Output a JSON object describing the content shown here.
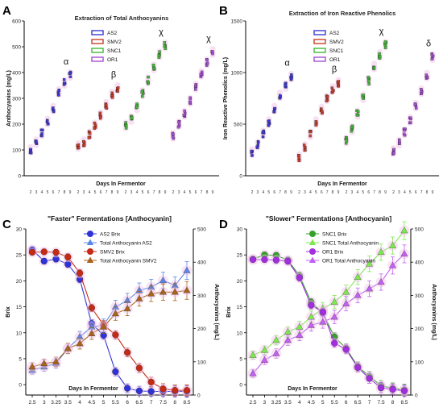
{
  "chart_data": [
    {
      "panel_label": "A",
      "type": "scatter",
      "title": "Extraction of Total Anthocyanins",
      "xlabel": "Days In Fermentor",
      "ylabel": "Anthocyanins (mg/L)",
      "ylim": [
        0,
        600
      ],
      "yticks": [
        0,
        100,
        200,
        300,
        400,
        500,
        600
      ],
      "grid": false,
      "legend": "top-center",
      "series": [
        {
          "name": "AS2",
          "color": "#3b3bd6",
          "days": [
            "2",
            "3",
            "4",
            "5",
            "6",
            "7",
            "8",
            "9"
          ],
          "values": [
            100,
            130,
            165,
            210,
            260,
            325,
            360,
            390
          ],
          "letter": "α"
        },
        {
          "name": "SMV2",
          "color": "#c8402a",
          "days": [
            "2",
            "3",
            "4",
            "5",
            "6",
            "7",
            "8",
            "9"
          ],
          "values": [
            115,
            130,
            160,
            195,
            235,
            275,
            315,
            340
          ],
          "letter": "β"
        },
        {
          "name": "SNC1",
          "color": "#44b83a",
          "days": [
            "2",
            "3",
            "4",
            "5",
            "6",
            "7",
            "8",
            "9"
          ],
          "values": [
            195,
            220,
            265,
            320,
            370,
            420,
            470,
            505
          ],
          "letter": "χ"
        },
        {
          "name": "OR1",
          "color": "#a64fd6",
          "days": [
            "2",
            "3",
            "4",
            "5",
            "6",
            "7",
            "8",
            "9"
          ],
          "values": [
            155,
            200,
            240,
            290,
            345,
            395,
            440,
            480
          ],
          "letter": "χ"
        }
      ]
    },
    {
      "panel_label": "B",
      "type": "scatter",
      "title": "Extraction of Iron Reactive Phenolics",
      "xlabel": "Days In Fermentor",
      "ylabel": "Iron Reactive Phenolics (mg/L)",
      "ylim": [
        0,
        1500
      ],
      "yticks": [
        0,
        500,
        1000,
        1500
      ],
      "grid": false,
      "legend": "top-center",
      "series": [
        {
          "name": "AS2",
          "color": "#3b3bd6",
          "days": [
            "2",
            "3",
            "4",
            "5",
            "6",
            "7",
            "8",
            "9"
          ],
          "values": [
            230,
            300,
            410,
            520,
            650,
            780,
            870,
            960
          ],
          "letter": "α"
        },
        {
          "name": "SMV2",
          "color": "#c8402a",
          "days": [
            "2",
            "3",
            "4",
            "5",
            "6",
            "7",
            "8",
            "9"
          ],
          "values": [
            180,
            280,
            400,
            520,
            640,
            750,
            840,
            900
          ],
          "letter": "β"
        },
        {
          "name": "SNC1",
          "color": "#44b83a",
          "days": [
            "2",
            "3",
            "4",
            "5",
            "6",
            "7",
            "8",
            "9"
          ],
          "values": [
            340,
            450,
            600,
            760,
            920,
            1060,
            1170,
            1270
          ],
          "letter": "χ"
        },
        {
          "name": "OR1",
          "color": "#a64fd6",
          "days": [
            "2",
            "3",
            "4",
            "5",
            "6",
            "7",
            "8",
            "9"
          ],
          "values": [
            240,
            320,
            420,
            540,
            680,
            820,
            970,
            1150
          ],
          "letter": "δ"
        }
      ]
    },
    {
      "panel_label": "C",
      "type": "line",
      "title": "\"Faster\" Fermentations [Anthocyanin]",
      "xlabel": "Days In Fermentor",
      "ylabel": "Brix",
      "y2label": "Anthocyanins (mg/L)",
      "ylim": [
        0,
        30
      ],
      "yticks": [
        0,
        5,
        10,
        15,
        20,
        25,
        30
      ],
      "y2lim": [
        0,
        500
      ],
      "y2ticks": [
        0,
        100,
        200,
        300,
        400,
        500
      ],
      "grid": false,
      "legend": "top-right",
      "x": [
        "2.5",
        "3",
        "3.25",
        "3.5",
        "4",
        "4.5",
        "5",
        "5.5",
        "6",
        "6.5",
        "7",
        "7.5",
        "8",
        "8.5"
      ],
      "series": [
        {
          "name": "AS2 Brix",
          "color": "#2e33d8",
          "marker": "circle",
          "axis": "left",
          "values": [
            26,
            23.8,
            24.2,
            23.2,
            20.3,
            11.8,
            9.5,
            2.5,
            -0.7,
            -1.2,
            -1.3,
            -1.3,
            -1.3,
            -1.3
          ]
        },
        {
          "name": "Total Anthocyanin AS2",
          "color": "#5b86e8",
          "marker": "triangle",
          "axis": "right",
          "values": [
            75,
            85,
            95,
            140,
            175,
            205,
            210,
            265,
            285,
            315,
            325,
            345,
            330,
            375
          ]
        },
        {
          "name": "SMV2 Brix",
          "color": "#c42a14",
          "marker": "circle",
          "axis": "left",
          "values": [
            25.5,
            25.6,
            25.5,
            24.6,
            21.5,
            14.8,
            11.5,
            9.6,
            6.2,
            3.2,
            0.5,
            -0.8,
            -1.1,
            -1.1
          ]
        },
        {
          "name": "Total Anthocyanin SMV2",
          "color": "#a8631a",
          "marker": "triangle",
          "axis": "right",
          "values": [
            85,
            95,
            100,
            140,
            155,
            185,
            205,
            245,
            260,
            290,
            305,
            310,
            310,
            315
          ]
        }
      ]
    },
    {
      "panel_label": "D",
      "type": "line",
      "title": "\"Slower\" Fermentations [Anthocyanin]",
      "xlabel": "Days In Fermentor",
      "ylabel": "Brix",
      "y2label": "Anthocyanins (mg/L)",
      "ylim": [
        0,
        30
      ],
      "yticks": [
        0,
        5,
        10,
        15,
        20,
        25,
        30
      ],
      "y2lim": [
        0,
        500
      ],
      "y2ticks": [
        0,
        100,
        200,
        300,
        400,
        500
      ],
      "grid": false,
      "legend": "top-right",
      "x": [
        "2.5",
        "3",
        "3.25",
        "3.5",
        "4",
        "4.5",
        "5",
        "5.5",
        "6",
        "6.5",
        "7",
        "7.5",
        "8",
        "8.5"
      ],
      "series": [
        {
          "name": "SNC1 Brix",
          "color": "#35a02a",
          "marker": "circle",
          "axis": "left",
          "values": [
            24.2,
            25.0,
            24.9,
            24.0,
            21.0,
            15.9,
            13.8,
            9.2,
            7.0,
            3.5,
            1.6,
            -0.2,
            -0.7,
            -1.0
          ]
        },
        {
          "name": "SNC1 Total Anthocyanin",
          "color": "#7ee84f",
          "marker": "triangle",
          "axis": "right",
          "values": [
            120,
            135,
            165,
            190,
            205,
            235,
            260,
            280,
            310,
            355,
            395,
            430,
            450,
            495
          ]
        },
        {
          "name": "OR1 Brix",
          "color": "#a12fe0",
          "marker": "circle",
          "axis": "left",
          "values": [
            24.1,
            24.1,
            24.0,
            23.8,
            20.6,
            15.3,
            14.0,
            8.0,
            6.8,
            3.3,
            1.2,
            -0.6,
            -0.9,
            -1.2
          ]
        },
        {
          "name": "OR1 Total Anthocyanin",
          "color": "#c260f0",
          "marker": "triangle",
          "axis": "right",
          "values": [
            65,
            105,
            125,
            165,
            180,
            210,
            220,
            235,
            275,
            300,
            320,
            340,
            390,
            425
          ]
        }
      ]
    }
  ]
}
